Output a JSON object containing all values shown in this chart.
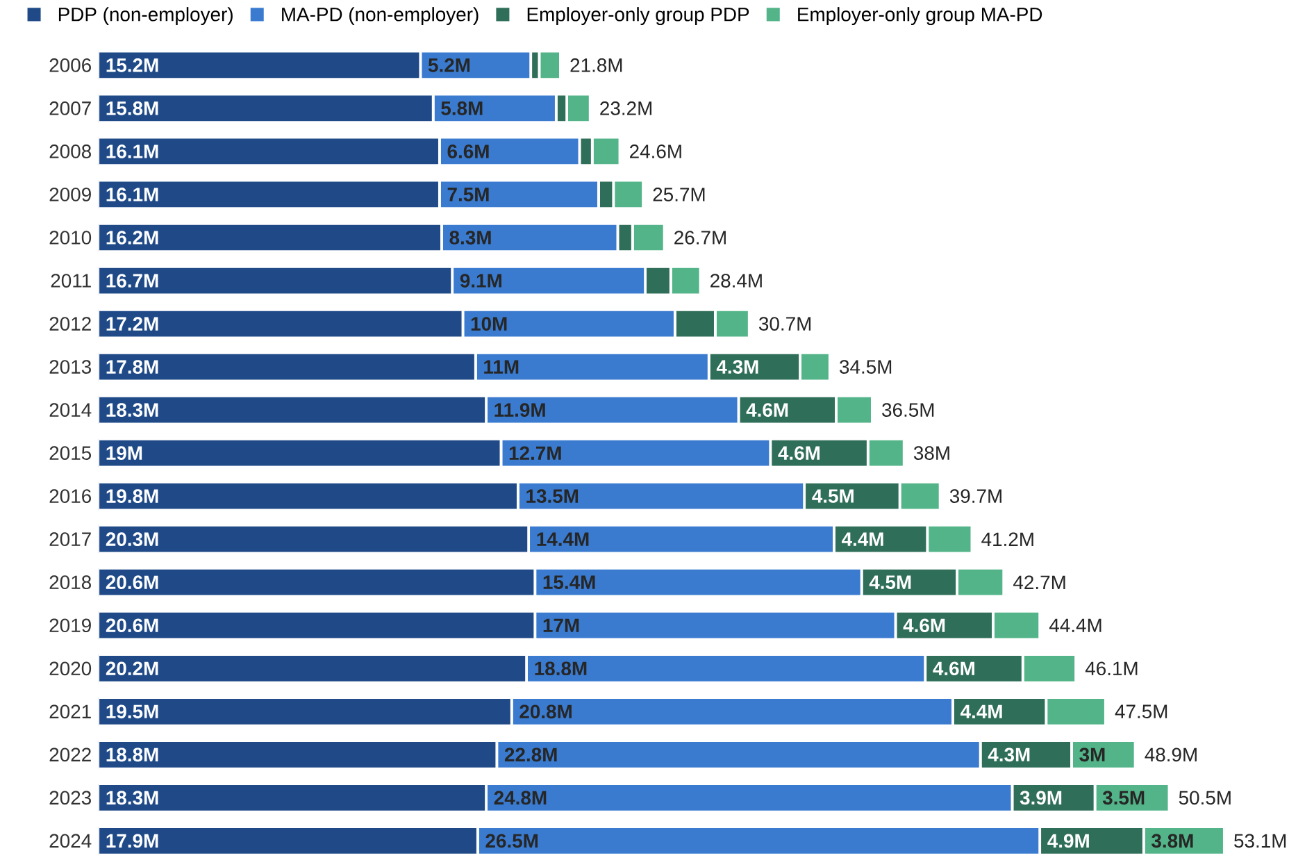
{
  "chart_data": {
    "type": "bar",
    "orientation": "horizontal",
    "stacked": true,
    "legend": "top left",
    "tick_labels": "y",
    "categories": [
      "2006",
      "2007",
      "2008",
      "2009",
      "2010",
      "2011",
      "2012",
      "2013",
      "2014",
      "2015",
      "2016",
      "2017",
      "2018",
      "2019",
      "2020",
      "2021",
      "2022",
      "2023",
      "2024"
    ],
    "series": [
      {
        "name": "PDP (non-employer)",
        "color": "#1f4a87",
        "values": [
          15.2,
          15.8,
          16.1,
          16.1,
          16.2,
          16.7,
          17.2,
          17.8,
          18.3,
          19,
          19.8,
          20.3,
          20.6,
          20.6,
          20.2,
          19.5,
          18.8,
          18.3,
          17.9
        ],
        "value_labels": [
          "15.2M",
          "15.8M",
          "16.1M",
          "16.1M",
          "16.2M",
          "16.7M",
          "17.2M",
          "17.8M",
          "18.3M",
          "19M",
          "19.8M",
          "20.3M",
          "20.6M",
          "20.6M",
          "20.2M",
          "19.5M",
          "18.8M",
          "18.3M",
          "17.9M"
        ]
      },
      {
        "name": "MA-PD (non-employer)",
        "color": "#3a7bd0",
        "values": [
          5.2,
          5.8,
          6.6,
          7.5,
          8.3,
          9.1,
          10,
          11,
          11.9,
          12.7,
          13.5,
          14.4,
          15.4,
          17,
          18.8,
          20.8,
          22.8,
          24.8,
          26.5
        ],
        "value_labels": [
          "5.2M",
          "5.8M",
          "6.6M",
          "7.5M",
          "8.3M",
          "9.1M",
          "10M",
          "11M",
          "11.9M",
          "12.7M",
          "13.5M",
          "14.4M",
          "15.4M",
          "17M",
          "18.8M",
          "20.8M",
          "22.8M",
          "24.8M",
          "26.5M"
        ]
      },
      {
        "name": "Employer-only group PDP",
        "color": "#2f6e58",
        "values": [
          0.4,
          0.5,
          0.6,
          0.7,
          0.7,
          1.2,
          1.9,
          4.3,
          4.6,
          4.6,
          4.5,
          4.4,
          4.5,
          4.6,
          4.6,
          4.4,
          4.3,
          3.9,
          4.9
        ],
        "value_labels": [
          null,
          null,
          null,
          null,
          null,
          null,
          null,
          "4.3M",
          "4.6M",
          "4.6M",
          "4.5M",
          "4.4M",
          "4.5M",
          "4.6M",
          "4.6M",
          "4.4M",
          "4.3M",
          "3.9M",
          "4.9M"
        ]
      },
      {
        "name": "Employer-only group MA-PD",
        "color": "#52b488",
        "values": [
          1.0,
          1.1,
          1.3,
          1.4,
          1.5,
          1.4,
          1.6,
          1.4,
          1.7,
          1.7,
          1.9,
          2.1,
          2.2,
          2.2,
          2.5,
          2.8,
          3,
          3.5,
          3.8
        ],
        "value_labels": [
          null,
          null,
          null,
          null,
          null,
          null,
          null,
          null,
          null,
          null,
          null,
          null,
          null,
          null,
          null,
          null,
          "3M",
          "3.5M",
          "3.8M"
        ]
      }
    ],
    "totals": [
      "21.8M",
      "23.2M",
      "24.6M",
      "25.7M",
      "26.7M",
      "28.4M",
      "30.7M",
      "34.5M",
      "36.5M",
      "38M",
      "39.7M",
      "41.2M",
      "42.7M",
      "44.4M",
      "46.1M",
      "47.5M",
      "48.9M",
      "50.5M",
      "53.1M"
    ]
  }
}
